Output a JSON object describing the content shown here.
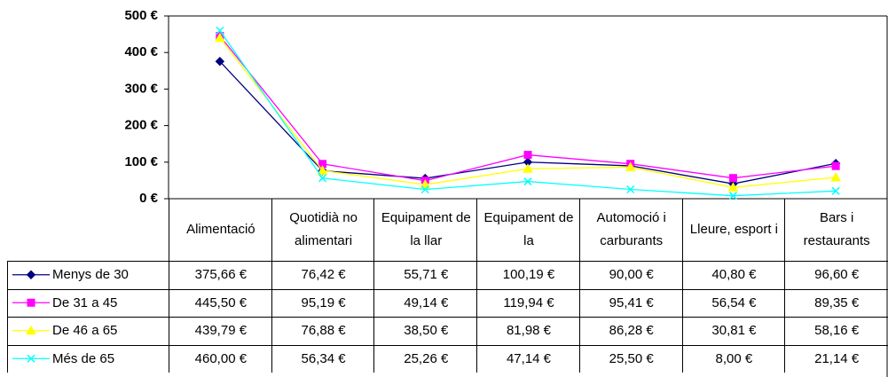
{
  "chart_data": {
    "type": "line",
    "categories": [
      "Alimentació",
      "Quotidià no alimentari",
      "Equipament de la llar",
      "Equipament de la",
      "Automoció i carburants",
      "Lleure, esport i",
      "Bars i restaurants"
    ],
    "series": [
      {
        "name": "Menys de 30",
        "color": "#000080",
        "marker": "diamond",
        "values": [
          375.66,
          76.42,
          55.71,
          100.19,
          90.0,
          40.8,
          96.6
        ],
        "value_labels": [
          "375,66 €",
          "76,42 €",
          "55,71 €",
          "100,19 €",
          "90,00 €",
          "40,80 €",
          "96,60 €"
        ]
      },
      {
        "name": "De 31 a 45",
        "color": "#ff00ff",
        "marker": "square",
        "values": [
          445.5,
          95.19,
          49.14,
          119.94,
          95.41,
          56.54,
          89.35
        ],
        "value_labels": [
          "445,50 €",
          "95,19 €",
          "49,14 €",
          "119,94 €",
          "95,41 €",
          "56,54 €",
          "89,35 €"
        ]
      },
      {
        "name": "De 46 a 65",
        "color": "#ffff00",
        "marker": "triangle",
        "values": [
          439.79,
          76.88,
          38.5,
          81.98,
          86.28,
          30.81,
          58.16
        ],
        "value_labels": [
          "439,79 €",
          "76,88 €",
          "38,50 €",
          "81,98 €",
          "86,28 €",
          "30,81 €",
          "58,16 €"
        ]
      },
      {
        "name": "Més de 65",
        "color": "#00ffff",
        "marker": "x",
        "values": [
          460.0,
          56.34,
          25.26,
          47.14,
          25.5,
          8.0,
          21.14
        ],
        "value_labels": [
          "460,00 €",
          "56,34 €",
          "25,26 €",
          "47,14 €",
          "25,50 €",
          "8,00 €",
          "21,14 €"
        ]
      }
    ],
    "ylim": [
      0,
      500
    ],
    "yticks": [
      {
        "value": 0,
        "label": "0 €"
      },
      {
        "value": 100,
        "label": "100 €"
      },
      {
        "value": 200,
        "label": "200 €"
      },
      {
        "value": 300,
        "label": "300 €"
      },
      {
        "value": 400,
        "label": "400 €"
      },
      {
        "value": 500,
        "label": "500 €"
      }
    ],
    "grid": false
  }
}
